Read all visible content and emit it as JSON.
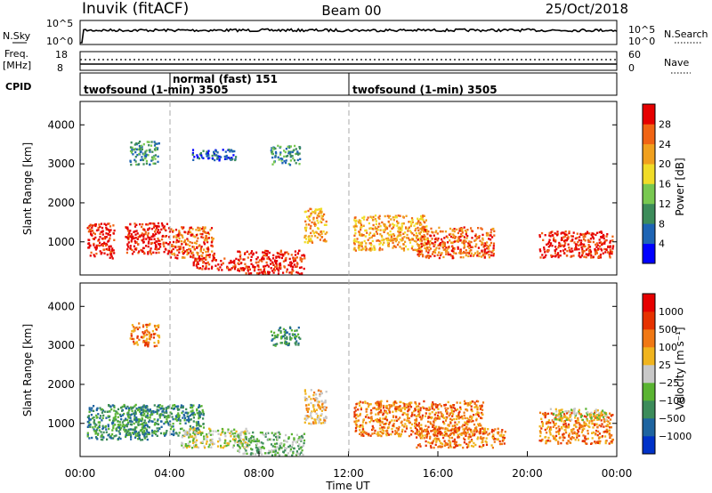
{
  "header": {
    "left_title": "Inuvik (fitACF)",
    "center_title": "Beam 00",
    "right_title": "25/Oct/2018"
  },
  "top_panels": {
    "nsky_label": "N.Sky",
    "nsky_ticks": [
      "10^5",
      "10^0"
    ],
    "nsearch_label": "N.Search",
    "nsearch_ticks": [
      "10^5",
      "10^0"
    ],
    "freq_label": "Freq.",
    "freq_unit": "[MHz]",
    "freq_ticks": [
      "18",
      "8"
    ],
    "nave_label": "Nave",
    "nave_ticks": [
      "60",
      "0"
    ],
    "cpid_label": "CPID",
    "cpid_segments": [
      {
        "label": "twofsound (1-min) 3505",
        "start": "00:00"
      },
      {
        "label": "normal (fast) 151",
        "start": "04:00"
      },
      {
        "label": "twofsound (1-min) 3505",
        "start": "12:00"
      }
    ]
  },
  "chart_data": [
    {
      "type": "heatmap",
      "title": "Power",
      "xlabel": "Time UT",
      "ylabel": "Slant Range [km]",
      "xlim": [
        "00:00",
        "24:00"
      ],
      "ylim": [
        150,
        4600
      ],
      "yticks": [
        1000,
        2000,
        3000,
        4000
      ],
      "colorbar": {
        "label": "Power [dB]",
        "ticks": [
          "4",
          "8",
          "12",
          "16",
          "20",
          "24",
          "28"
        ],
        "colors": [
          "#0000ff",
          "#1e64b4",
          "#3c8c5a",
          "#78c850",
          "#f0dc28",
          "#f0a01e",
          "#f06414",
          "#e60000"
        ]
      },
      "scatter_regions": [
        {
          "t0": 0.3,
          "t1": 1.5,
          "r0": 600,
          "r1": 1500,
          "level": 7
        },
        {
          "t0": 2.0,
          "t1": 4.0,
          "r0": 700,
          "r1": 1500,
          "level": 7
        },
        {
          "t0": 4.0,
          "t1": 6.0,
          "r0": 600,
          "r1": 1400,
          "level": 6
        },
        {
          "t0": 5.0,
          "t1": 7.0,
          "r0": 300,
          "r1": 600,
          "level": 7
        },
        {
          "t0": 7.0,
          "t1": 10.0,
          "r0": 200,
          "r1": 800,
          "level": 7
        },
        {
          "t0": 10.0,
          "t1": 11.0,
          "r0": 1000,
          "r1": 1900,
          "level": 5
        },
        {
          "t0": 12.2,
          "t1": 15.5,
          "r0": 800,
          "r1": 1700,
          "level": 5
        },
        {
          "t0": 15.0,
          "t1": 18.5,
          "r0": 600,
          "r1": 1400,
          "level": 6
        },
        {
          "t0": 20.5,
          "t1": 23.8,
          "r0": 600,
          "r1": 1300,
          "level": 7
        },
        {
          "t0": 2.2,
          "t1": 3.5,
          "r0": 3000,
          "r1": 3600,
          "level": 2
        },
        {
          "t0": 5.0,
          "t1": 7.0,
          "r0": 3100,
          "r1": 3400,
          "level": 1
        },
        {
          "t0": 8.5,
          "t1": 9.8,
          "r0": 3000,
          "r1": 3500,
          "level": 2
        }
      ]
    },
    {
      "type": "heatmap",
      "title": "Velocity",
      "xlabel": "Time UT",
      "ylabel": "Slant Range [km]",
      "xlim": [
        "00:00",
        "24:00"
      ],
      "ylim": [
        150,
        4600
      ],
      "yticks": [
        1000,
        2000,
        3000,
        4000
      ],
      "xticks": [
        "00:00",
        "04:00",
        "08:00",
        "12:00",
        "16:00",
        "20:00",
        "00:00"
      ],
      "colorbar": {
        "label": "Velocity [m s⁻¹]",
        "ticks": [
          "1000",
          "500",
          "100",
          "25",
          "−25",
          "−100",
          "−500",
          "−1000"
        ],
        "colors": [
          "#0032c8",
          "#1e64a0",
          "#3c8c5a",
          "#5ab432",
          "#c8c8c8",
          "#f0b41e",
          "#f07814",
          "#e63200",
          "#e60000"
        ]
      },
      "scatter_regions": [
        {
          "t0": 0.3,
          "t1": 3.0,
          "r0": 600,
          "r1": 1500,
          "level": 2
        },
        {
          "t0": 2.0,
          "t1": 5.5,
          "r0": 700,
          "r1": 1500,
          "level": 2
        },
        {
          "t0": 4.5,
          "t1": 7.5,
          "r0": 400,
          "r1": 900,
          "level": 4
        },
        {
          "t0": 7.0,
          "t1": 10.0,
          "r0": 200,
          "r1": 800,
          "level": 3
        },
        {
          "t0": 10.0,
          "t1": 11.0,
          "r0": 1000,
          "r1": 1900,
          "level": 5
        },
        {
          "t0": 12.2,
          "t1": 18.0,
          "r0": 700,
          "r1": 1600,
          "level": 6
        },
        {
          "t0": 15.0,
          "t1": 19.0,
          "r0": 400,
          "r1": 900,
          "level": 6
        },
        {
          "t0": 20.5,
          "t1": 23.8,
          "r0": 500,
          "r1": 1300,
          "level": 6
        },
        {
          "t0": 21.0,
          "t1": 23.5,
          "r0": 1100,
          "r1": 1400,
          "level": 4
        },
        {
          "t0": 2.2,
          "t1": 3.5,
          "r0": 3000,
          "r1": 3600,
          "level": 6
        },
        {
          "t0": 8.5,
          "t1": 9.8,
          "r0": 3000,
          "r1": 3500,
          "level": 2
        }
      ]
    }
  ]
}
